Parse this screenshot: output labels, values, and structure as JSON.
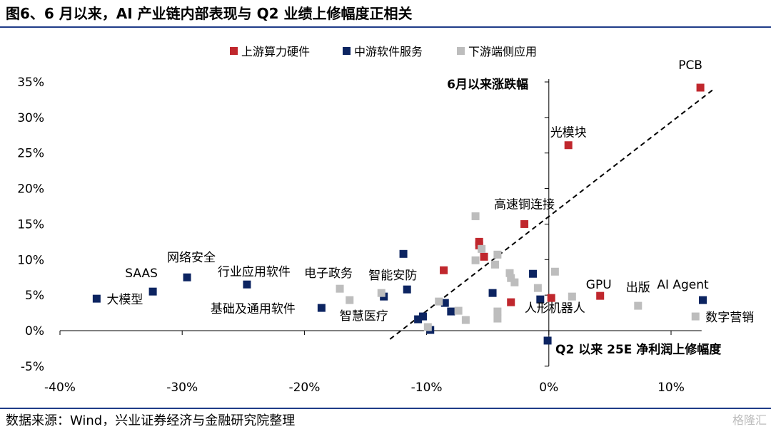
{
  "header": {
    "title": "图6、6 月以来，AI 产业链内部表现与 Q2 业绩上修幅度正相关"
  },
  "footer": {
    "source": "数据来源：Wind，兴业证券经济与金融研究院整理",
    "watermark": "格隆汇"
  },
  "chart_data": {
    "type": "scatter",
    "legend_position": "top",
    "x_axis_label": "Q2 以来 25E 净利润上修幅度",
    "y_axis_label": "6月以来涨跌幅",
    "x_ticks": [
      "-40%",
      "-30%",
      "-20%",
      "-10%",
      "0%",
      "10%"
    ],
    "x_tick_values": [
      -40,
      -30,
      -20,
      -10,
      0,
      10
    ],
    "y_ticks": [
      "35%",
      "30%",
      "25%",
      "20%",
      "15%",
      "10%",
      "5%",
      "0%",
      "-5%"
    ],
    "y_tick_values": [
      35,
      30,
      25,
      20,
      15,
      10,
      5,
      0,
      -5
    ],
    "xlim": [
      -40,
      12
    ],
    "ylim": [
      -5,
      35
    ],
    "grid": false,
    "trendline": {
      "style": "dashed",
      "from": [
        -13,
        -1.2
      ],
      "to": [
        13.5,
        34
      ]
    },
    "series": [
      {
        "name": "上游算力硬件",
        "color": "#c0272d",
        "points": [
          {
            "x": 12.4,
            "y": 34.2,
            "label": "PCB"
          },
          {
            "x": 1.6,
            "y": 26.1,
            "label": "光模块"
          },
          {
            "x": -2.0,
            "y": 15.0,
            "label": "高速铜连接"
          },
          {
            "x": 4.2,
            "y": 4.9,
            "label": "GPU"
          },
          {
            "x": -5.7,
            "y": 12.5
          },
          {
            "x": -5.7,
            "y": 12.0
          },
          {
            "x": -5.3,
            "y": 10.4
          },
          {
            "x": -8.6,
            "y": 8.5
          },
          {
            "x": -3.1,
            "y": 4.0
          },
          {
            "x": 0.2,
            "y": 4.6
          }
        ]
      },
      {
        "name": "中游软件服务",
        "color": "#0c2461",
        "points": [
          {
            "x": -37.0,
            "y": 4.5,
            "label": "大模型"
          },
          {
            "x": -32.4,
            "y": 5.5,
            "label": "SAAS"
          },
          {
            "x": -29.6,
            "y": 7.5,
            "label": "网络安全"
          },
          {
            "x": -24.7,
            "y": 6.5,
            "label": "行业应用软件"
          },
          {
            "x": -18.6,
            "y": 3.2,
            "label": "基础及通用软件"
          },
          {
            "x": -11.6,
            "y": 5.8,
            "label": "智能安防"
          },
          {
            "x": 12.6,
            "y": 4.3,
            "label": "AI Agent"
          },
          {
            "x": -11.9,
            "y": 10.8
          },
          {
            "x": -13.5,
            "y": 4.8
          },
          {
            "x": -10.3,
            "y": 2.0
          },
          {
            "x": -10.7,
            "y": 1.6
          },
          {
            "x": -9.7,
            "y": 0.1
          },
          {
            "x": -8.5,
            "y": 3.9
          },
          {
            "x": -8.0,
            "y": 2.7
          },
          {
            "x": -4.6,
            "y": 5.3
          },
          {
            "x": -1.3,
            "y": 8.0
          },
          {
            "x": -0.7,
            "y": 4.4
          },
          {
            "x": -0.1,
            "y": -1.4
          }
        ]
      },
      {
        "name": "下游端侧应用",
        "color": "#bdbdbd",
        "points": [
          {
            "x": -17.1,
            "y": 5.9,
            "label": "电子政务"
          },
          {
            "x": -16.3,
            "y": 4.3,
            "label": "智慧医疗"
          },
          {
            "x": 1.9,
            "y": 4.8,
            "label": "人形机器人"
          },
          {
            "x": 7.3,
            "y": 3.5,
            "label": "出版"
          },
          {
            "x": 12.0,
            "y": 2.0,
            "label": "数字营销"
          },
          {
            "x": -6.0,
            "y": 16.1
          },
          {
            "x": -6.0,
            "y": 9.9
          },
          {
            "x": -5.5,
            "y": 11.5
          },
          {
            "x": -4.2,
            "y": 10.7
          },
          {
            "x": -4.4,
            "y": 9.3
          },
          {
            "x": -3.2,
            "y": 8.1
          },
          {
            "x": -3.1,
            "y": 7.4
          },
          {
            "x": -2.8,
            "y": 6.8
          },
          {
            "x": 0.5,
            "y": 8.3
          },
          {
            "x": -0.9,
            "y": 6.0
          },
          {
            "x": -13.7,
            "y": 5.3
          },
          {
            "x": -9.0,
            "y": 4.1
          },
          {
            "x": -7.4,
            "y": 2.8
          },
          {
            "x": -6.8,
            "y": 1.5
          },
          {
            "x": -9.9,
            "y": 0.5
          },
          {
            "x": -4.2,
            "y": 2.7
          },
          {
            "x": -4.2,
            "y": 1.7
          }
        ]
      }
    ]
  }
}
